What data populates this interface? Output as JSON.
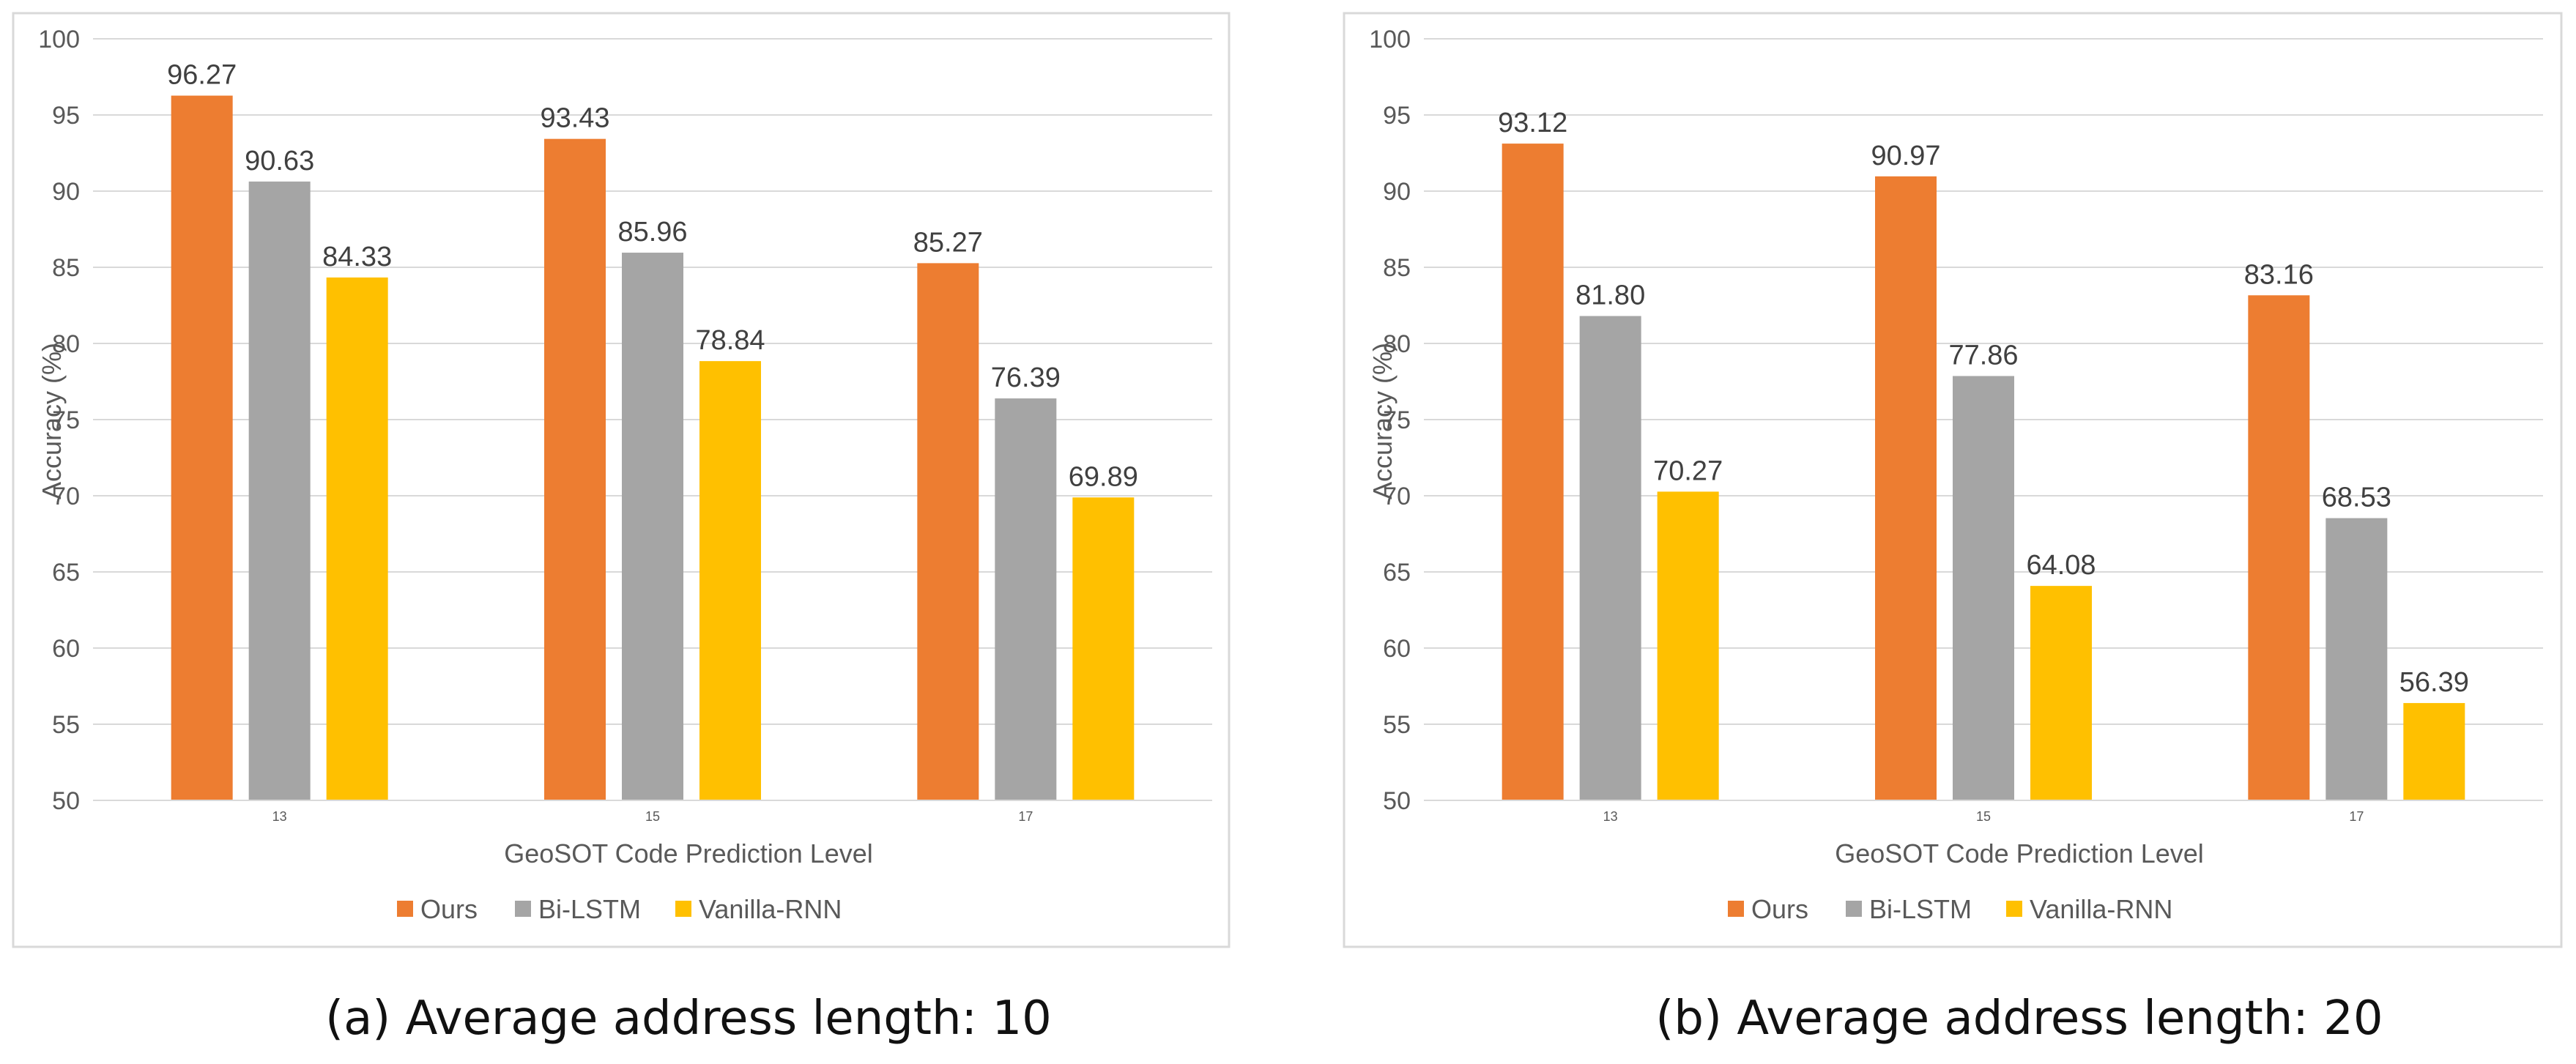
{
  "chart_data": [
    {
      "type": "bar",
      "caption": "(a) Average address length: 10",
      "xlabel": "GeoSOT Code Prediction Level",
      "ylabel": "Accuracy (%)",
      "ylim": [
        50,
        100
      ],
      "yticks": [
        50,
        55,
        60,
        65,
        70,
        75,
        80,
        85,
        90,
        95,
        100
      ],
      "categories": [
        "13",
        "15",
        "17"
      ],
      "legend_position": "bottom",
      "grid": true,
      "series": [
        {
          "name": "Ours",
          "color": "#ED7D31",
          "values": [
            96.27,
            93.43,
            85.27
          ],
          "labels": [
            "96.27",
            "93.43",
            "85.27"
          ]
        },
        {
          "name": "Bi-LSTM",
          "color": "#A5A5A5",
          "values": [
            90.63,
            85.96,
            76.39
          ],
          "labels": [
            "90.63",
            "85.96",
            "76.39"
          ]
        },
        {
          "name": "Vanilla-RNN",
          "color": "#FFC000",
          "values": [
            84.33,
            78.84,
            69.89
          ],
          "labels": [
            "84.33",
            "78.84",
            "69.89"
          ]
        }
      ]
    },
    {
      "type": "bar",
      "caption": "(b) Average address length: 20",
      "xlabel": "GeoSOT Code Prediction Level",
      "ylabel": "Accuracy (%)",
      "ylim": [
        50,
        100
      ],
      "yticks": [
        50,
        55,
        60,
        65,
        70,
        75,
        80,
        85,
        90,
        95,
        100
      ],
      "categories": [
        "13",
        "15",
        "17"
      ],
      "legend_position": "bottom",
      "grid": true,
      "series": [
        {
          "name": "Ours",
          "color": "#ED7D31",
          "values": [
            93.12,
            90.97,
            83.16
          ],
          "labels": [
            "93.12",
            "90.97",
            "83.16"
          ]
        },
        {
          "name": "Bi-LSTM",
          "color": "#A5A5A5",
          "values": [
            81.8,
            77.86,
            68.53
          ],
          "labels": [
            "81.80",
            "77.86",
            "68.53"
          ]
        },
        {
          "name": "Vanilla-RNN",
          "color": "#FFC000",
          "values": [
            70.27,
            64.08,
            56.39
          ],
          "labels": [
            "70.27",
            "64.08",
            "56.39"
          ]
        }
      ]
    }
  ]
}
